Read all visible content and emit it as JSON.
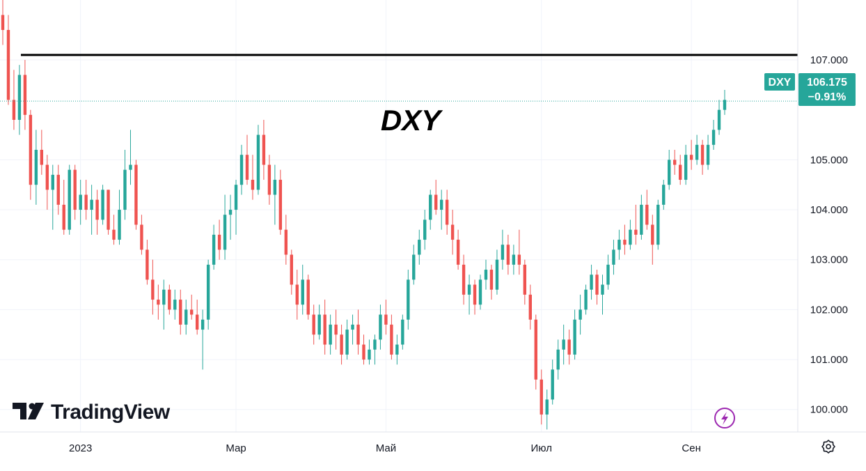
{
  "chart_data": {
    "type": "candlestick",
    "title": "DXY",
    "symbol": "DXY",
    "last_price": "106.175",
    "change": "−0.91%",
    "resistance_level": 107.1,
    "ylim": [
      99.55,
      108.2
    ],
    "y_ticks": [
      "100.000",
      "101.000",
      "102.000",
      "103.000",
      "104.000",
      "105.000",
      "107.000"
    ],
    "x_ticks": [
      {
        "label": "2023",
        "index": 14
      },
      {
        "label": "Мар",
        "index": 42
      },
      {
        "label": "Май",
        "index": 69
      },
      {
        "label": "Июл",
        "index": 97
      },
      {
        "label": "Сен",
        "index": 124
      }
    ],
    "ohlc": [
      [
        107.9,
        108.4,
        107.3,
        107.6
      ],
      [
        107.6,
        107.9,
        106.1,
        106.2
      ],
      [
        106.2,
        106.8,
        105.6,
        105.8
      ],
      [
        105.8,
        106.9,
        105.5,
        106.7
      ],
      [
        106.7,
        107.0,
        105.6,
        105.9
      ],
      [
        105.9,
        106.0,
        104.2,
        104.5
      ],
      [
        104.5,
        105.6,
        104.1,
        105.2
      ],
      [
        105.2,
        105.6,
        104.7,
        104.9
      ],
      [
        104.9,
        105.1,
        104.0,
        104.4
      ],
      [
        104.4,
        104.9,
        103.6,
        104.7
      ],
      [
        104.7,
        104.9,
        103.9,
        104.1
      ],
      [
        104.1,
        104.6,
        103.5,
        103.6
      ],
      [
        103.6,
        104.9,
        103.5,
        104.8
      ],
      [
        104.8,
        104.9,
        103.8,
        104.0
      ],
      [
        104.0,
        104.6,
        103.7,
        104.3
      ],
      [
        104.3,
        104.6,
        103.8,
        104.0
      ],
      [
        104.0,
        104.5,
        103.5,
        104.2
      ],
      [
        104.2,
        104.4,
        103.5,
        103.8
      ],
      [
        103.8,
        104.5,
        103.7,
        104.4
      ],
      [
        104.4,
        104.4,
        103.5,
        103.6
      ],
      [
        103.6,
        103.9,
        103.3,
        103.4
      ],
      [
        103.4,
        104.4,
        103.3,
        104.0
      ],
      [
        104.0,
        105.2,
        103.8,
        104.8
      ],
      [
        104.8,
        105.6,
        104.5,
        104.9
      ],
      [
        104.9,
        105.0,
        103.6,
        103.7
      ],
      [
        103.7,
        103.9,
        103.1,
        103.2
      ],
      [
        103.2,
        103.4,
        102.5,
        102.6
      ],
      [
        102.6,
        103.0,
        101.9,
        102.2
      ],
      [
        102.2,
        102.5,
        101.8,
        102.1
      ],
      [
        102.1,
        102.6,
        101.6,
        102.4
      ],
      [
        102.4,
        102.5,
        101.9,
        102.0
      ],
      [
        102.0,
        102.4,
        101.8,
        102.2
      ],
      [
        102.2,
        102.4,
        101.5,
        101.7
      ],
      [
        101.7,
        102.2,
        101.5,
        102.0
      ],
      [
        102.0,
        102.3,
        101.8,
        101.9
      ],
      [
        101.9,
        102.2,
        101.5,
        101.6
      ],
      [
        101.6,
        102.0,
        100.8,
        101.8
      ],
      [
        101.8,
        103.0,
        101.6,
        102.9
      ],
      [
        102.9,
        103.7,
        102.8,
        103.5
      ],
      [
        103.5,
        103.8,
        103.0,
        103.2
      ],
      [
        103.2,
        104.3,
        103.0,
        103.9
      ],
      [
        103.9,
        104.3,
        103.4,
        104.0
      ],
      [
        104.0,
        104.6,
        103.5,
        104.5
      ],
      [
        104.5,
        105.3,
        104.3,
        105.1
      ],
      [
        105.1,
        105.5,
        104.5,
        104.6
      ],
      [
        104.6,
        105.1,
        104.2,
        104.4
      ],
      [
        104.4,
        105.7,
        104.3,
        105.5
      ],
      [
        105.5,
        105.8,
        104.6,
        104.9
      ],
      [
        104.9,
        105.1,
        104.1,
        104.3
      ],
      [
        104.3,
        104.9,
        103.7,
        104.6
      ],
      [
        104.6,
        104.8,
        103.5,
        103.6
      ],
      [
        103.6,
        103.9,
        102.9,
        103.1
      ],
      [
        103.1,
        103.2,
        102.3,
        102.5
      ],
      [
        102.5,
        102.8,
        101.8,
        102.1
      ],
      [
        102.1,
        102.9,
        101.9,
        102.6
      ],
      [
        102.6,
        102.7,
        101.8,
        101.9
      ],
      [
        101.9,
        102.1,
        101.3,
        101.5
      ],
      [
        101.5,
        102.1,
        101.4,
        101.9
      ],
      [
        101.9,
        102.2,
        101.1,
        101.3
      ],
      [
        101.3,
        101.9,
        101.1,
        101.7
      ],
      [
        101.7,
        102.0,
        101.2,
        101.5
      ],
      [
        101.5,
        101.7,
        100.9,
        101.1
      ],
      [
        101.1,
        101.8,
        101.0,
        101.6
      ],
      [
        101.6,
        101.9,
        101.3,
        101.7
      ],
      [
        101.7,
        102.0,
        101.1,
        101.3
      ],
      [
        101.3,
        101.5,
        100.9,
        101.0
      ],
      [
        101.0,
        101.4,
        100.9,
        101.2
      ],
      [
        101.2,
        101.5,
        100.9,
        101.4
      ],
      [
        101.4,
        102.1,
        101.2,
        101.9
      ],
      [
        101.9,
        102.2,
        101.5,
        101.7
      ],
      [
        101.7,
        101.9,
        101.0,
        101.1
      ],
      [
        101.1,
        101.5,
        100.9,
        101.3
      ],
      [
        101.3,
        101.9,
        101.2,
        101.8
      ],
      [
        101.8,
        102.8,
        101.6,
        102.6
      ],
      [
        102.6,
        103.3,
        102.5,
        103.1
      ],
      [
        103.1,
        103.6,
        102.9,
        103.4
      ],
      [
        103.4,
        104.0,
        103.2,
        103.8
      ],
      [
        103.8,
        104.4,
        103.6,
        104.3
      ],
      [
        104.3,
        104.6,
        103.9,
        104.0
      ],
      [
        104.0,
        104.4,
        103.6,
        104.2
      ],
      [
        104.2,
        104.4,
        103.5,
        103.7
      ],
      [
        103.7,
        104.0,
        103.1,
        103.4
      ],
      [
        103.4,
        103.6,
        102.8,
        102.9
      ],
      [
        102.9,
        103.1,
        102.1,
        102.3
      ],
      [
        102.3,
        102.7,
        101.9,
        102.5
      ],
      [
        102.5,
        102.6,
        101.9,
        102.1
      ],
      [
        102.1,
        102.7,
        102.0,
        102.6
      ],
      [
        102.6,
        103.0,
        102.4,
        102.8
      ],
      [
        102.8,
        102.9,
        102.2,
        102.4
      ],
      [
        102.4,
        103.2,
        102.3,
        103.0
      ],
      [
        103.0,
        103.6,
        102.8,
        103.3
      ],
      [
        103.3,
        103.5,
        102.7,
        102.9
      ],
      [
        102.9,
        103.3,
        102.7,
        103.1
      ],
      [
        103.1,
        103.6,
        102.7,
        102.9
      ],
      [
        102.9,
        103.0,
        102.1,
        102.3
      ],
      [
        102.3,
        102.5,
        101.6,
        101.8
      ],
      [
        101.8,
        101.9,
        100.4,
        100.6
      ],
      [
        100.6,
        100.8,
        99.7,
        99.9
      ],
      [
        99.9,
        100.4,
        99.6,
        100.2
      ],
      [
        100.2,
        101.0,
        100.1,
        100.8
      ],
      [
        100.8,
        101.4,
        100.6,
        101.2
      ],
      [
        101.2,
        101.7,
        100.9,
        101.4
      ],
      [
        101.4,
        101.6,
        100.9,
        101.1
      ],
      [
        101.1,
        102.0,
        101.0,
        101.8
      ],
      [
        101.8,
        102.3,
        101.5,
        102.0
      ],
      [
        102.0,
        102.5,
        101.9,
        102.4
      ],
      [
        102.4,
        102.9,
        102.2,
        102.7
      ],
      [
        102.7,
        102.8,
        102.1,
        102.3
      ],
      [
        102.3,
        102.7,
        101.9,
        102.5
      ],
      [
        102.5,
        103.1,
        102.4,
        102.9
      ],
      [
        102.9,
        103.4,
        102.7,
        103.2
      ],
      [
        103.2,
        103.6,
        103.0,
        103.4
      ],
      [
        103.4,
        103.7,
        103.1,
        103.3
      ],
      [
        103.3,
        103.8,
        103.2,
        103.6
      ],
      [
        103.6,
        104.1,
        103.3,
        103.5
      ],
      [
        103.5,
        104.3,
        103.4,
        104.1
      ],
      [
        104.1,
        104.4,
        103.6,
        103.7
      ],
      [
        103.7,
        103.9,
        102.9,
        103.3
      ],
      [
        103.3,
        104.2,
        103.2,
        104.1
      ],
      [
        104.1,
        104.6,
        104.0,
        104.5
      ],
      [
        104.5,
        105.2,
        104.4,
        105.0
      ],
      [
        105.0,
        105.2,
        104.7,
        104.9
      ],
      [
        104.9,
        105.1,
        104.5,
        104.6
      ],
      [
        104.6,
        105.3,
        104.5,
        105.1
      ],
      [
        105.1,
        105.4,
        104.8,
        105.0
      ],
      [
        105.0,
        105.5,
        104.9,
        105.3
      ],
      [
        105.3,
        105.4,
        104.7,
        104.9
      ],
      [
        104.9,
        105.5,
        104.8,
        105.3
      ],
      [
        105.3,
        105.8,
        105.2,
        105.6
      ],
      [
        105.6,
        106.2,
        105.5,
        106.0
      ],
      [
        106.0,
        106.4,
        105.9,
        106.2
      ]
    ]
  },
  "brand": {
    "name": "TradingView"
  },
  "colors": {
    "up": "#26a69a",
    "down": "#ef5350",
    "badge": "#26a69a",
    "resistance": "#000000",
    "price_line": "#26a69a",
    "flash_icon": "#9c27b0",
    "grid": "#f0f3fa",
    "axis_border": "#e0e3eb"
  },
  "icons": {
    "flash": "lightning-bolt-icon",
    "settings": "gear-icon",
    "logo": "tradingview-logo-icon"
  }
}
